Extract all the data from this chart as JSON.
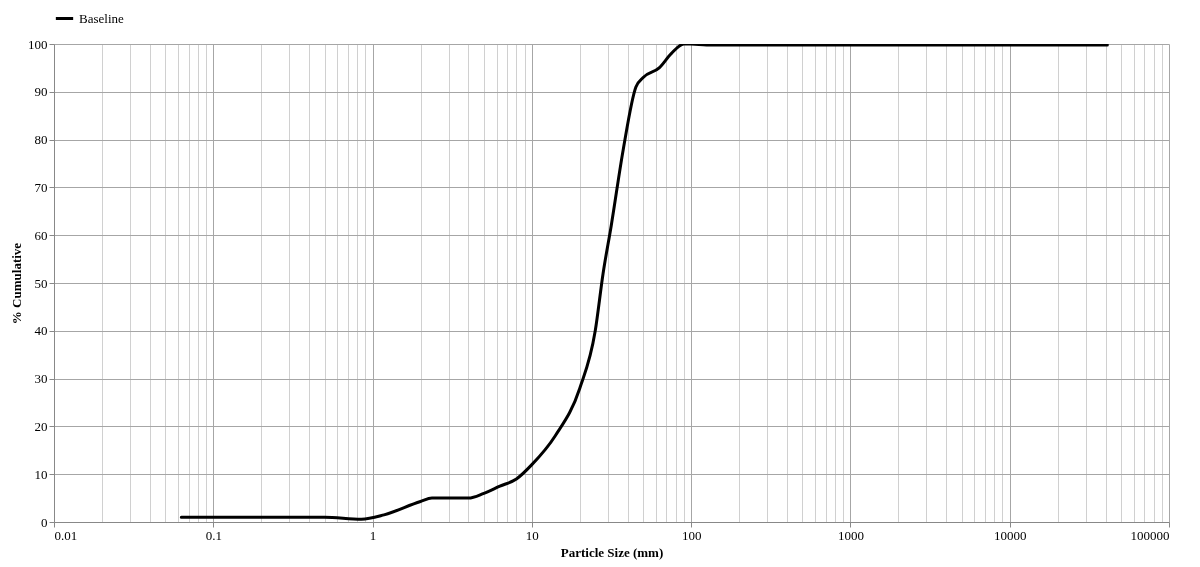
{
  "chart_data": {
    "type": "line",
    "xlabel": "Particle Size (mm)",
    "ylabel": "% Cumulative",
    "log": "x",
    "legend": "top",
    "grid": true,
    "line_style": "solid",
    "marker": "none",
    "xlim": [
      0.01,
      100000
    ],
    "ylim": [
      0,
      100
    ],
    "xticks": [
      0.01,
      {
        "value": 0.02,
        "label": null
      },
      {
        "value": 0.03,
        "label": null
      },
      {
        "value": 0.04,
        "label": null
      },
      {
        "value": 0.05,
        "label": null
      },
      {
        "value": 0.06,
        "label": null
      },
      {
        "value": 0.07,
        "label": null
      },
      {
        "value": 0.08,
        "label": null
      },
      {
        "value": 0.09,
        "label": null
      },
      0.1,
      {
        "value": 0.2,
        "label": null
      },
      {
        "value": 0.3,
        "label": null
      },
      {
        "value": 0.4,
        "label": null
      },
      {
        "value": 0.5,
        "label": null
      },
      {
        "value": 0.6,
        "label": null
      },
      {
        "value": 0.7,
        "label": null
      },
      {
        "value": 0.8,
        "label": null
      },
      {
        "value": 0.9,
        "label": null
      },
      1,
      {
        "value": 2,
        "label": null
      },
      {
        "value": 3,
        "label": null
      },
      {
        "value": 4,
        "label": null
      },
      {
        "value": 5,
        "label": null
      },
      {
        "value": 6,
        "label": null
      },
      {
        "value": 7,
        "label": null
      },
      {
        "value": 8,
        "label": null
      },
      {
        "value": 9,
        "label": null
      },
      10,
      {
        "value": 20,
        "label": null
      },
      {
        "value": 30,
        "label": null
      },
      {
        "value": 40,
        "label": null
      },
      {
        "value": 50,
        "label": null
      },
      {
        "value": 60,
        "label": null
      },
      {
        "value": 70,
        "label": null
      },
      {
        "value": 80,
        "label": null
      },
      {
        "value": 90,
        "label": null
      },
      100,
      {
        "value": 200,
        "label": null
      },
      {
        "value": 300,
        "label": null
      },
      {
        "value": 400,
        "label": null
      },
      {
        "value": 500,
        "label": null
      },
      {
        "value": 600,
        "label": null
      },
      {
        "value": 700,
        "label": null
      },
      {
        "value": 800,
        "label": null
      },
      {
        "value": 900,
        "label": null
      },
      1000,
      {
        "value": 2000,
        "label": null
      },
      {
        "value": 3000,
        "label": null
      },
      {
        "value": 4000,
        "label": null
      },
      {
        "value": 5000,
        "label": null
      },
      {
        "value": 6000,
        "label": null
      },
      {
        "value": 7000,
        "label": null
      },
      {
        "value": 8000,
        "label": null
      },
      {
        "value": 9000,
        "label": null
      },
      10000,
      {
        "value": 20000,
        "label": null
      },
      {
        "value": 30000,
        "label": null
      },
      {
        "value": 40000,
        "label": null
      },
      {
        "value": 50000,
        "label": null
      },
      {
        "value": 60000,
        "label": null
      },
      {
        "value": 70000,
        "label": null
      },
      {
        "value": 80000,
        "label": null
      },
      {
        "value": 90000,
        "label": null
      },
      100000
    ],
    "yticks": [
      0,
      10,
      20,
      30,
      40,
      50,
      60,
      70,
      80,
      90,
      100
    ],
    "x": [
      0.063,
      0.5,
      0.85,
      1.18,
      2,
      2.36,
      4,
      5,
      6.3,
      8,
      10,
      14,
      20,
      25,
      28,
      31.5,
      37.5,
      45,
      50,
      63,
      75,
      90,
      100,
      125,
      41000
    ],
    "series": [
      {
        "name": "Baseline",
        "color": "#000000",
        "values": [
          1,
          1,
          0.6,
          1.5,
          4.3,
          5,
          5,
          6,
          7.5,
          9,
          12,
          18,
          28,
          40,
          52,
          62,
          78,
          91,
          93,
          95,
          98,
          100,
          100,
          99.8,
          99.8
        ]
      }
    ]
  }
}
